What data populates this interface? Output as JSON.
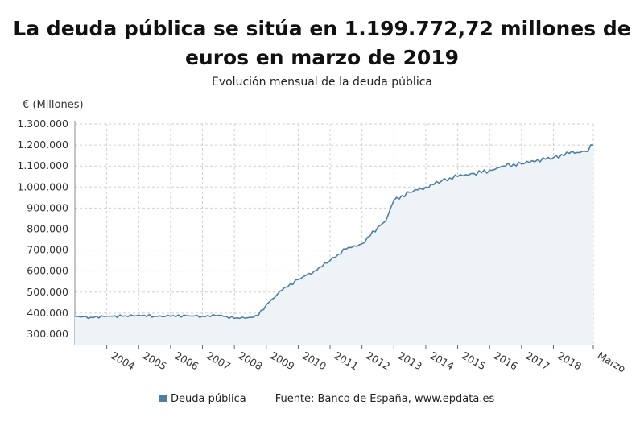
{
  "chart_data": {
    "type": "area",
    "title": "La deuda pública se sitúa en 1.199.772,72 millones de euros en marzo de 2019",
    "subtitle": "Evolución mensual de la deuda pública",
    "ylabel": "€ (Millones)",
    "ylim": [
      250000,
      1300000
    ],
    "y_ticks": [
      "1.300.000",
      "1.200.000",
      "1.100.000",
      "1.000.000",
      "900.000",
      "800.000",
      "700.000",
      "600.000",
      "500.000",
      "400.000",
      "300.000"
    ],
    "x_ticks": [
      "2004",
      "2005",
      "2006",
      "2007",
      "2008",
      "2009",
      "2010",
      "2011",
      "2012",
      "2013",
      "2014",
      "2015",
      "2016",
      "2017",
      "2018",
      "Marzo"
    ],
    "grid": true,
    "legend_position": "bottom",
    "color": "#4d7fa3",
    "fill_color": "#eef3f8",
    "series": [
      {
        "name": "Deuda pública",
        "x": [
          2003.0,
          2003.5,
          2004.0,
          2004.5,
          2005.0,
          2005.5,
          2006.0,
          2006.5,
          2007.0,
          2007.5,
          2008.0,
          2008.5,
          2008.75,
          2009.0,
          2009.5,
          2010.0,
          2010.5,
          2011.0,
          2011.5,
          2012.0,
          2012.5,
          2012.75,
          2013.0,
          2013.5,
          2014.0,
          2014.5,
          2015.0,
          2015.5,
          2016.0,
          2016.5,
          2017.0,
          2017.5,
          2018.0,
          2018.5,
          2019.0,
          2019.25
        ],
        "values": [
          385000,
          380000,
          385000,
          385000,
          390000,
          385000,
          385000,
          388000,
          385000,
          390000,
          375000,
          380000,
          390000,
          440000,
          510000,
          560000,
          600000,
          650000,
          705000,
          730000,
          810000,
          840000,
          935000,
          975000,
          1000000,
          1030000,
          1050000,
          1065000,
          1080000,
          1100000,
          1110000,
          1130000,
          1140000,
          1160000,
          1170000,
          1199773
        ]
      }
    ]
  },
  "footer": {
    "legend_label": "Deuda pública",
    "source": "Fuente: Banco de España, www.epdata.es"
  }
}
